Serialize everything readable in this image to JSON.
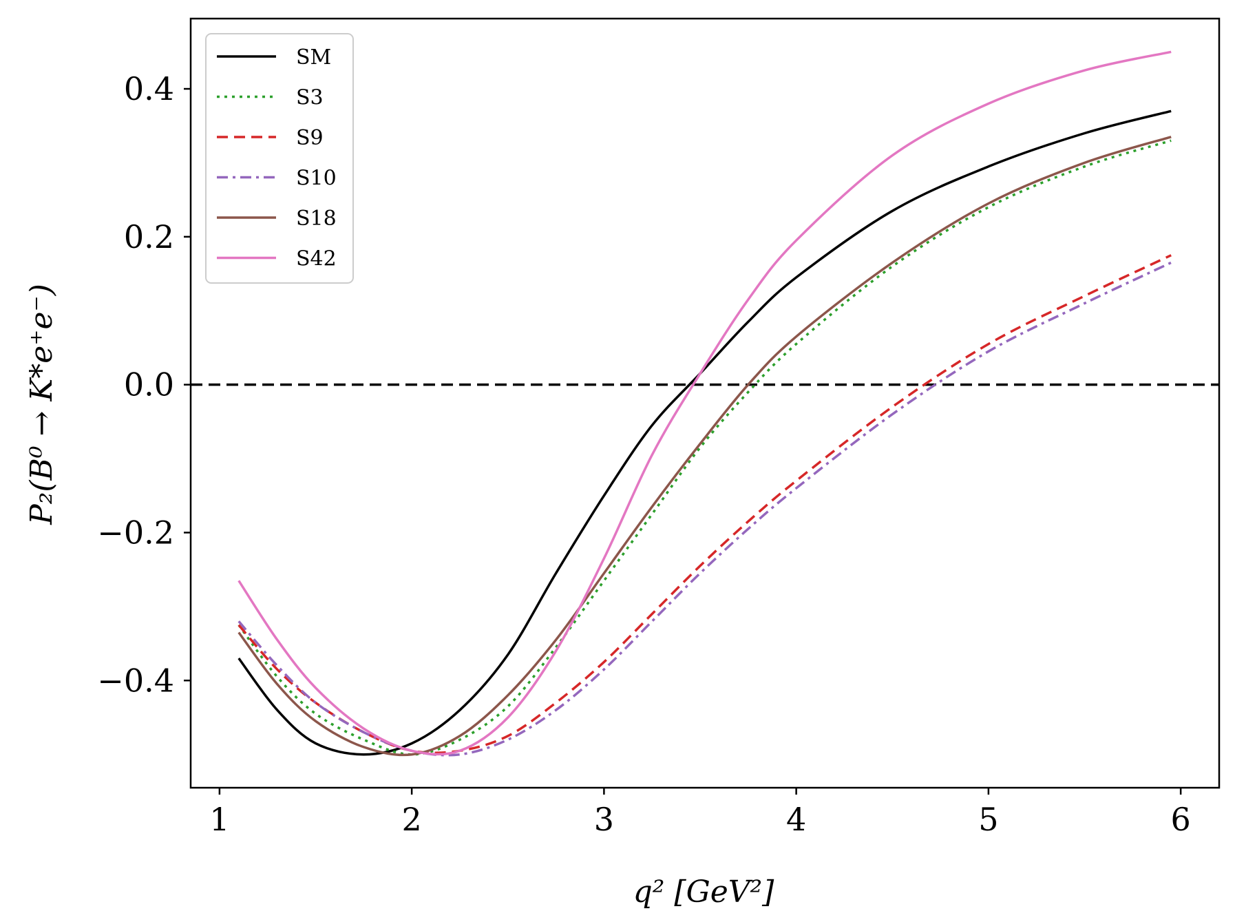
{
  "chart_data": {
    "type": "line",
    "xlabel": "q² [GeV²]",
    "ylabel": "P₂(B⁰ → K*e⁺e⁻)",
    "xlim": [
      0.85,
      6.2
    ],
    "ylim": [
      -0.545,
      0.495
    ],
    "xticks": [
      1,
      2,
      3,
      4,
      5,
      6
    ],
    "xtick_labels": [
      "1",
      "2",
      "3",
      "4",
      "5",
      "6"
    ],
    "yticks": [
      -0.4,
      -0.2,
      0.0,
      0.2,
      0.4
    ],
    "ytick_labels": [
      "−0.4",
      "−0.2",
      "0.0",
      "0.2",
      "0.4"
    ],
    "reference_line": {
      "y": 0.0,
      "color": "#000000",
      "style": "dashed"
    },
    "legend_location": "upper-left",
    "series": [
      {
        "name": "SM",
        "color": "#000000",
        "style": "solid",
        "x": [
          1.1,
          1.3,
          1.5,
          1.75,
          2.0,
          2.25,
          2.5,
          2.75,
          3.0,
          3.25,
          3.5,
          3.75,
          4.0,
          4.5,
          5.0,
          5.5,
          5.95
        ],
        "y": [
          -0.37,
          -0.44,
          -0.485,
          -0.5,
          -0.485,
          -0.44,
          -0.365,
          -0.255,
          -0.15,
          -0.055,
          0.015,
          0.085,
          0.145,
          0.235,
          0.295,
          0.34,
          0.37
        ]
      },
      {
        "name": "S3",
        "color": "#2ca02c",
        "style": "dotted",
        "x": [
          1.1,
          1.3,
          1.5,
          1.75,
          2.0,
          2.25,
          2.5,
          2.75,
          3.0,
          3.25,
          3.5,
          3.75,
          4.0,
          4.5,
          5.0,
          5.5,
          5.95
        ],
        "y": [
          -0.325,
          -0.395,
          -0.445,
          -0.48,
          -0.5,
          -0.48,
          -0.435,
          -0.355,
          -0.265,
          -0.175,
          -0.085,
          -0.01,
          0.055,
          0.16,
          0.24,
          0.295,
          0.33
        ]
      },
      {
        "name": "S9",
        "color": "#d62728",
        "style": "dashed",
        "x": [
          1.1,
          1.3,
          1.5,
          1.75,
          2.0,
          2.25,
          2.5,
          2.75,
          3.0,
          3.25,
          3.5,
          3.75,
          4.0,
          4.5,
          5.0,
          5.5,
          5.95
        ],
        "y": [
          -0.325,
          -0.385,
          -0.43,
          -0.47,
          -0.495,
          -0.495,
          -0.475,
          -0.43,
          -0.375,
          -0.31,
          -0.245,
          -0.185,
          -0.13,
          -0.03,
          0.055,
          0.12,
          0.175
        ]
      },
      {
        "name": "S10",
        "color": "#9467bd",
        "style": "dashdot",
        "x": [
          1.1,
          1.3,
          1.5,
          1.75,
          2.0,
          2.25,
          2.5,
          2.75,
          3.0,
          3.25,
          3.5,
          3.75,
          4.0,
          4.5,
          5.0,
          5.5,
          5.95
        ],
        "y": [
          -0.32,
          -0.38,
          -0.43,
          -0.47,
          -0.495,
          -0.5,
          -0.48,
          -0.44,
          -0.385,
          -0.32,
          -0.255,
          -0.195,
          -0.14,
          -0.04,
          0.045,
          0.11,
          0.165
        ]
      },
      {
        "name": "S18",
        "color": "#8c564b",
        "style": "solid",
        "x": [
          1.1,
          1.3,
          1.5,
          1.75,
          2.0,
          2.25,
          2.5,
          2.75,
          3.0,
          3.25,
          3.5,
          3.75,
          4.0,
          4.5,
          5.0,
          5.5,
          5.95
        ],
        "y": [
          -0.335,
          -0.405,
          -0.455,
          -0.49,
          -0.5,
          -0.475,
          -0.42,
          -0.345,
          -0.255,
          -0.165,
          -0.08,
          0.0,
          0.065,
          0.165,
          0.245,
          0.3,
          0.335
        ]
      },
      {
        "name": "S42",
        "color": "#e377c2",
        "style": "solid",
        "x": [
          1.1,
          1.3,
          1.5,
          1.75,
          2.0,
          2.25,
          2.5,
          2.75,
          3.0,
          3.25,
          3.5,
          3.75,
          4.0,
          4.5,
          5.0,
          5.5,
          5.95
        ],
        "y": [
          -0.265,
          -0.345,
          -0.41,
          -0.465,
          -0.495,
          -0.495,
          -0.45,
          -0.36,
          -0.235,
          -0.095,
          0.015,
          0.115,
          0.195,
          0.31,
          0.38,
          0.425,
          0.45
        ]
      }
    ]
  }
}
